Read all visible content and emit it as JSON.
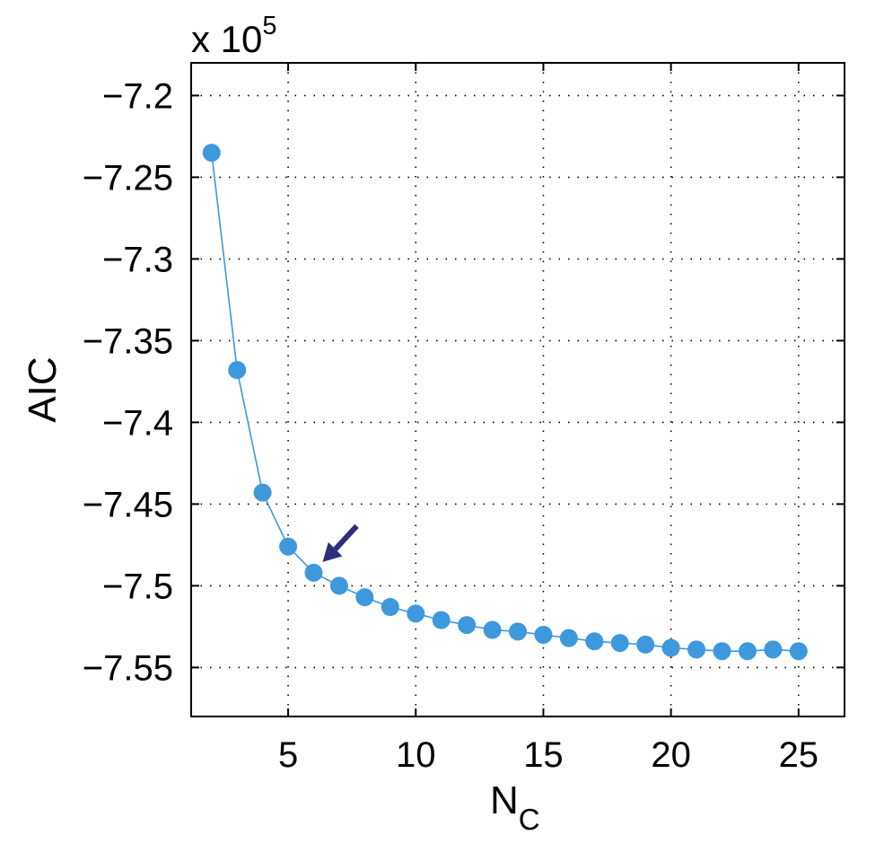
{
  "chart_data": {
    "type": "line",
    "title": "",
    "xlabel": "N",
    "xlabel_subscript": "C",
    "ylabel": "AIC",
    "exponent_label": "x 10",
    "exponent_power": "5",
    "xlim": [
      1.2,
      26.8
    ],
    "ylim": [
      -7.58,
      -7.18
    ],
    "xticks": [
      5,
      10,
      15,
      20,
      25
    ],
    "xtick_labels": [
      "5",
      "10",
      "15",
      "20",
      "25"
    ],
    "yticks": [
      -7.2,
      -7.25,
      -7.3,
      -7.35,
      -7.4,
      -7.45,
      -7.5,
      -7.55
    ],
    "ytick_labels": [
      "−7.2",
      "−7.25",
      "−7.3",
      "−7.35",
      "−7.4",
      "−7.45",
      "−7.5",
      "−7.55"
    ],
    "grid": true,
    "series": [
      {
        "color": "#3d98dc",
        "marker": "circle",
        "x": [
          2,
          3,
          4,
          5,
          6,
          7,
          8,
          9,
          10,
          11,
          12,
          13,
          14,
          15,
          16,
          17,
          18,
          19,
          20,
          21,
          22,
          23,
          24,
          25
        ],
        "y": [
          -7.235,
          -7.368,
          -7.443,
          -7.476,
          -7.492,
          -7.5,
          -7.507,
          -7.513,
          -7.517,
          -7.521,
          -7.524,
          -7.527,
          -7.528,
          -7.53,
          -7.532,
          -7.534,
          -7.535,
          -7.536,
          -7.538,
          -7.539,
          -7.54,
          -7.54,
          -7.539,
          -7.54
        ]
      }
    ],
    "annotations": [
      {
        "type": "arrow",
        "points_to": {
          "x": 6,
          "y": -7.492
        },
        "color": "#2e2e7a"
      }
    ]
  }
}
